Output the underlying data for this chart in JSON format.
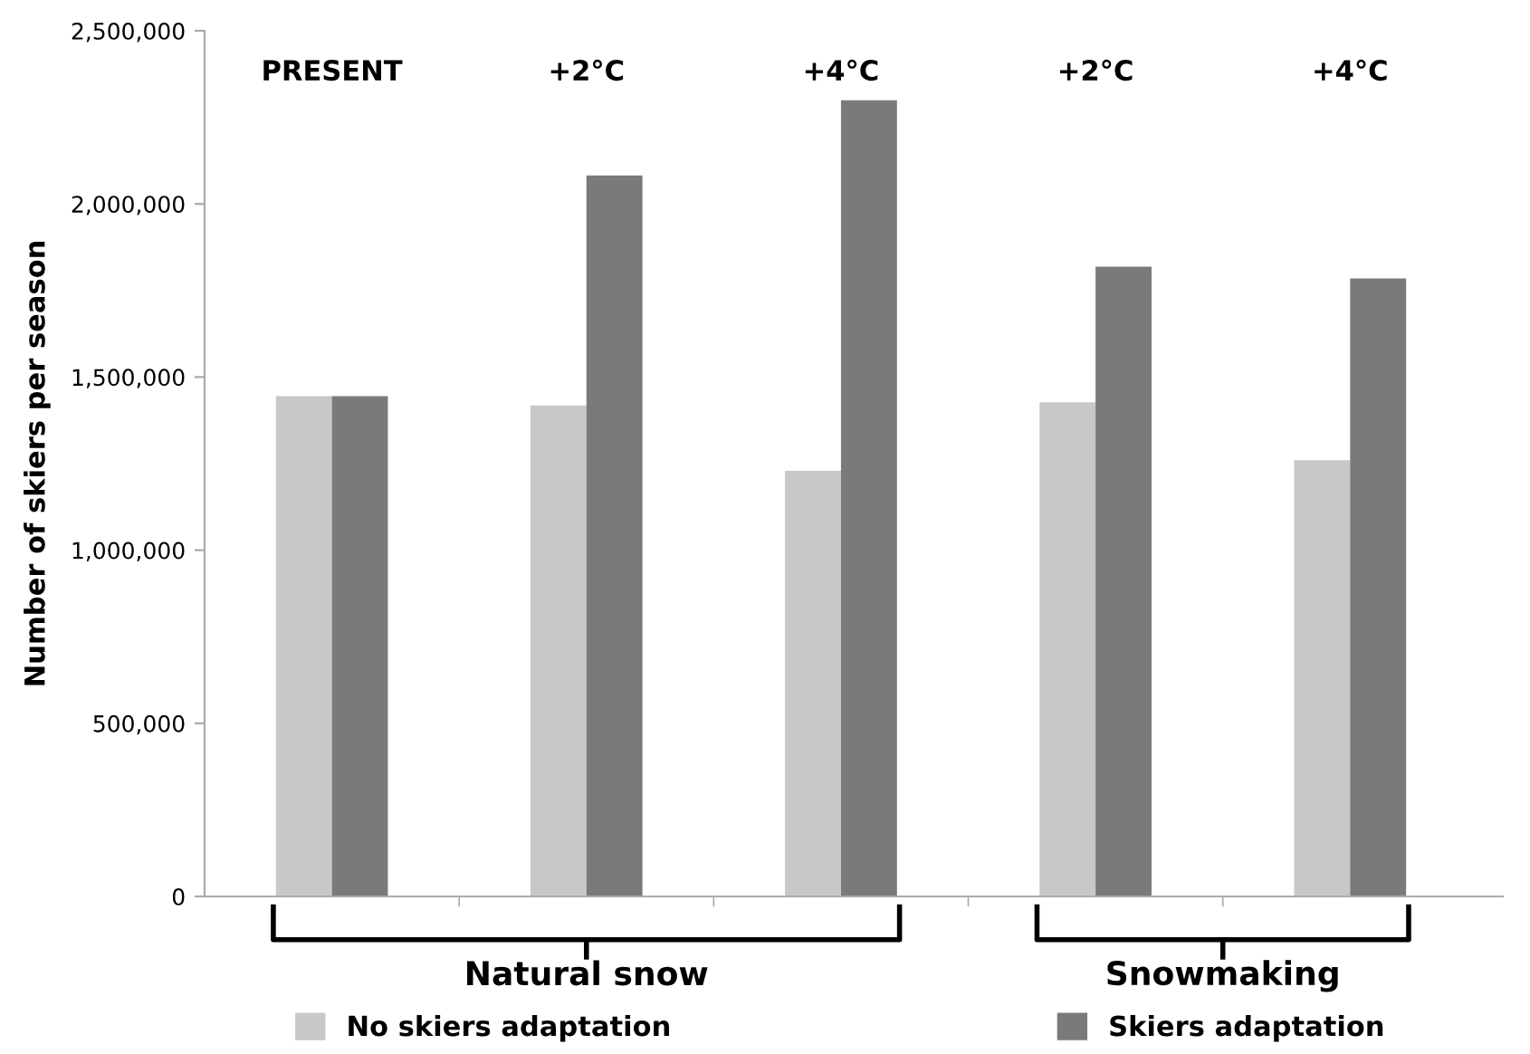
{
  "chart_data": {
    "type": "bar",
    "ylabel": "Number of skiers per season",
    "categories": [
      "PRESENT",
      "+2°C",
      "+4°C",
      "+2°C",
      "+4°C"
    ],
    "series": [
      {
        "name": "No skiers adaptation",
        "color": "#c8c8c8",
        "values": [
          1445000,
          1418000,
          1229000,
          1427000,
          1260000
        ]
      },
      {
        "name": "Skiers adaptation",
        "color": "#7a7a7a",
        "values": [
          1445000,
          2082000,
          2299000,
          1819000,
          1785000
        ]
      }
    ],
    "ylim": [
      0,
      2500000
    ],
    "yticks": [
      {
        "value": 0,
        "label": "0"
      },
      {
        "value": 500000,
        "label": "500,000"
      },
      {
        "value": 1000000,
        "label": "1,000,000"
      },
      {
        "value": 1500000,
        "label": "1,500,000"
      },
      {
        "value": 2000000,
        "label": "2,000,000"
      },
      {
        "value": 2500000,
        "label": "2,500,000"
      }
    ],
    "annotations": [
      "Natural snow",
      "Snowmaking"
    ],
    "grid": false,
    "legend": "bottom"
  }
}
